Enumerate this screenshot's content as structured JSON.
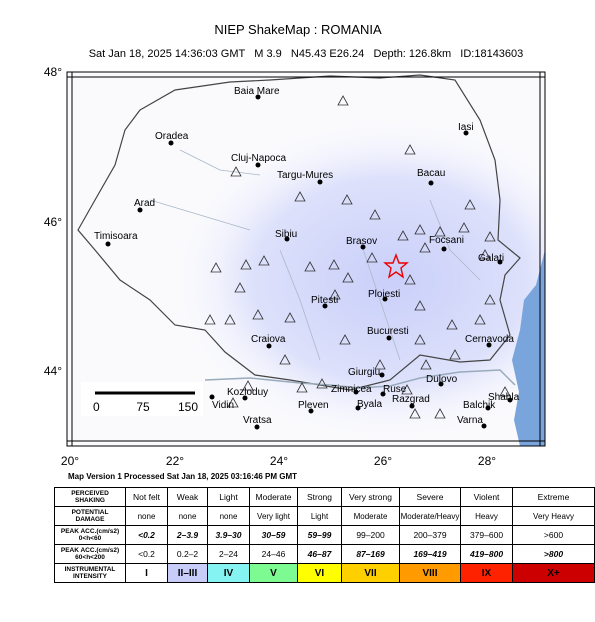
{
  "title": "NIEP ShakeMap : ROMANIA",
  "subtitle": "Sat Jan 18, 2025 14:36:03 GMT   M 3.9   N45.43 E26.24   Depth: 126.8km   ID:18143603",
  "map": {
    "lat_labels": [
      "48°",
      "46°",
      "44°"
    ],
    "lon_labels": [
      "20°",
      "22°",
      "24°",
      "26°",
      "28°"
    ],
    "cities": [
      "Baia Mare",
      "Oradea",
      "Cluj-Napoca",
      "Targu-Mures",
      "Iasi",
      "Bacau",
      "Arad",
      "Timisoara",
      "Sibiu",
      "Brasov",
      "Focsani",
      "Galati",
      "Ploiesti",
      "Pitesti",
      "Bucuresti",
      "Craiova",
      "Cernavoda",
      "Giurgiu",
      "Zimnicea",
      "Ruse",
      "Dulovo",
      "Kozloduy",
      "Vidin",
      "Pleven",
      "Byala",
      "Razgrad",
      "Shabla",
      "Balchik",
      "Vratsa",
      "Varna"
    ],
    "scale_labels": [
      "0",
      "75",
      "150"
    ],
    "version": "Map Version 1 Processed Sat Jan 18, 2025 03:16:46 PM GMT"
  },
  "table": {
    "row_headers": [
      [
        "PERCEIVED",
        "SHAKING"
      ],
      [
        "POTENTIAL",
        "DAMAGE"
      ],
      [
        "PEAK ACC.(cm/s2)",
        "0<h<60"
      ],
      [
        "PEAK ACC.(cm/s2)",
        "60<h<200"
      ],
      [
        "INSTRUMENTAL",
        "INTENSITY"
      ]
    ],
    "columns": [
      "Not felt",
      "Weak",
      "Light",
      "Moderate",
      "Strong",
      "Very strong",
      "Severe",
      "Violent",
      "Extreme"
    ],
    "rows": [
      [
        "none",
        "none",
        "none",
        "Very light",
        "Light",
        "Moderate",
        "Moderate/Heavy",
        "Heavy",
        "Very Heavy"
      ],
      [
        "<0.2",
        "2–3.9",
        "3.9–30",
        "30–59",
        "59–99",
        "99–200",
        "200–379",
        "379–600",
        ">600"
      ],
      [
        "<0.2",
        "0.2–2",
        "2–24",
        "24–46",
        "46–87",
        "87–169",
        "169–419",
        "419–800",
        ">800"
      ],
      [
        "I",
        "II–III",
        "IV",
        "V",
        "VI",
        "VII",
        "VIII",
        "IX",
        "X+"
      ]
    ],
    "intensity_colors": [
      "#ffffff",
      "#c8ccf8",
      "#86f3f3",
      "#7dfa92",
      "#ffff00",
      "#ffd000",
      "#ff9a00",
      "#ff2200",
      "#cc0000"
    ]
  }
}
